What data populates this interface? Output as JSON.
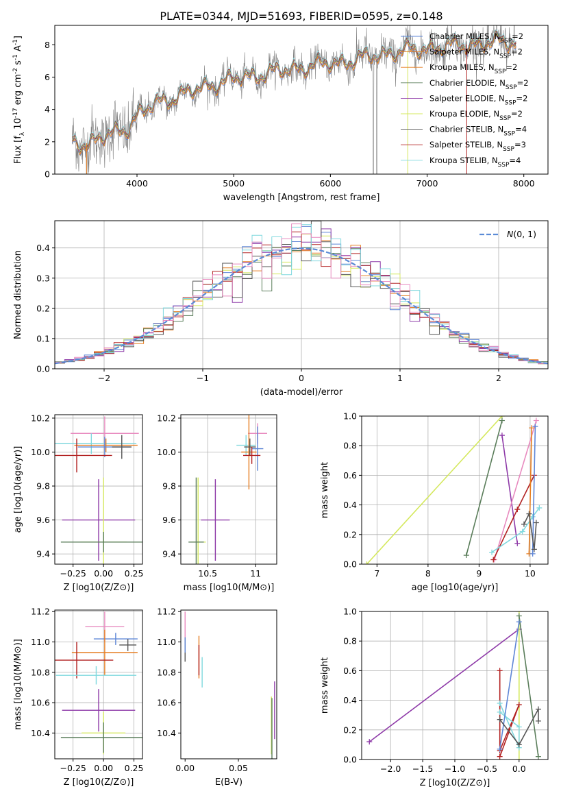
{
  "title": "PLATE=0344, MJD=51693, FIBERID=0595, z=0.148",
  "colors": {
    "chabrier_miles": "#5e86d6",
    "salpeter_miles": "#e67e22",
    "kroupa_miles": "#e67e22",
    "chabrier_elodie": "#5a7d5a",
    "salpeter_elodie": "#8e3aa8",
    "kroupa_elodie": "#d4e85c",
    "chabrier_stelib": "#555555",
    "salpeter_stelib": "#b22222",
    "kroupa_stelib": "#7fd8de",
    "pink": "#e88abf",
    "gaussian": "#5b8bd6",
    "spectrum": "#808080"
  },
  "chart_data": [
    {
      "id": "spectrum",
      "type": "line",
      "xlabel": "wavelength [Angstrom, rest frame]",
      "ylabel": "Flux [f_λ 10^-17 erg cm^-2 s^-1 A^-1]",
      "xlim": [
        3150,
        8250
      ],
      "ylim": [
        0,
        9.2
      ],
      "xticks": [
        4000,
        5000,
        6000,
        7000,
        8000
      ],
      "yticks": [
        0,
        2,
        4,
        6,
        8
      ],
      "grid": false,
      "legend_position": "top-right",
      "legend": [
        {
          "label": "Chabrier MILES, N_SSP=2",
          "color_key": "chabrier_miles"
        },
        {
          "label": "Salpeter MILES, N_SSP=2",
          "color_key": "salpeter_miles"
        },
        {
          "label": "Kroupa MILES, N_SSP=2",
          "color_key": "kroupa_miles"
        },
        {
          "label": "Chabrier ELODIE, N_SSP=2",
          "color_key": "chabrier_elodie"
        },
        {
          "label": "Salpeter ELODIE, N_SSP=2",
          "color_key": "salpeter_elodie"
        },
        {
          "label": "Kroupa ELODIE, N_SSP=2",
          "color_key": "kroupa_elodie"
        },
        {
          "label": "Chabrier STELIB, N_SSP=4",
          "color_key": "chabrier_stelib"
        },
        {
          "label": "Salpeter STELIB, N_SSP=3",
          "color_key": "salpeter_stelib"
        },
        {
          "label": "Kroupa STELIB, N_SSP=4",
          "color_key": "kroupa_stelib"
        }
      ],
      "continuum": {
        "x": [
          3330,
          3500,
          3700,
          3900,
          4000,
          4200,
          4500,
          4800,
          5100,
          5400,
          5800,
          6200,
          6600,
          7000,
          7400,
          7600,
          7800,
          7900
        ],
        "y": [
          2.0,
          1.9,
          2.4,
          2.9,
          3.6,
          4.4,
          5.0,
          5.6,
          6.0,
          6.3,
          6.7,
          7.0,
          7.5,
          7.8,
          8.0,
          8.1,
          8.2,
          8.2
        ]
      }
    },
    {
      "id": "residuals",
      "type": "histogram",
      "xlabel": "(data-model)/error",
      "ylabel": "Normed distribution",
      "xlim": [
        -2.5,
        2.5
      ],
      "ylim": [
        0,
        0.49
      ],
      "xticks": [
        -2,
        -1,
        0,
        1,
        2
      ],
      "yticks": [
        0.0,
        0.1,
        0.2,
        0.3,
        0.4
      ],
      "grid": true,
      "legend_position": "top-right",
      "legend": [
        {
          "label": "N(0,1)",
          "color_key": "gaussian",
          "style": "dashed"
        }
      ],
      "bin_width": 0.1
    },
    {
      "id": "age_vs_z",
      "type": "errorbar",
      "xlabel": "Z [log10(Z/Z⊙)]",
      "ylabel": "age  [log10(age/yr)]",
      "xlim": [
        -0.4,
        0.32
      ],
      "ylim": [
        9.34,
        10.22
      ],
      "xticks": [
        -0.25,
        0.0,
        0.25
      ],
      "xtick_labels": [
        "−0.25",
        "0.00",
        "0.25"
      ],
      "yticks": [
        9.4,
        9.6,
        9.8,
        10.0,
        10.2
      ],
      "grid": true,
      "points": [
        {
          "x": 0.01,
          "y": 10.11,
          "xerr": 0.28,
          "yerr": 0.1,
          "color_key": "pink"
        },
        {
          "x": -0.1,
          "y": 10.05,
          "xerr": 0.37,
          "yerr": 0.06,
          "color_key": "kroupa_stelib"
        },
        {
          "x": 0.02,
          "y": 10.04,
          "xerr": 0.26,
          "yerr": 0.04,
          "color_key": "salpeter_miles"
        },
        {
          "x": 0.01,
          "y": 10.03,
          "xerr": 0.22,
          "yerr": 0.06,
          "color_key": "chabrier_miles"
        },
        {
          "x": 0.15,
          "y": 10.03,
          "xerr": 0.08,
          "yerr": 0.07,
          "color_key": "chabrier_stelib"
        },
        {
          "x": -0.22,
          "y": 9.98,
          "xerr": 0.29,
          "yerr": 0.1,
          "color_key": "salpeter_stelib"
        },
        {
          "x": -0.04,
          "y": 9.6,
          "xerr": 0.3,
          "yerr": 0.24,
          "color_key": "salpeter_elodie"
        },
        {
          "x": 0.0,
          "y": 9.47,
          "xerr": 0.19,
          "yerr": 0.38,
          "color_key": "kroupa_elodie"
        },
        {
          "x": 0.0,
          "y": 9.47,
          "xerr": 0.35,
          "yerr": 0.06,
          "color_key": "chabrier_elodie"
        }
      ]
    },
    {
      "id": "age_vs_mass",
      "type": "errorbar",
      "xlabel": "mass [log10(M/M⊙)]",
      "ylabel": "",
      "xlim": [
        10.22,
        11.22
      ],
      "ylim": [
        9.34,
        10.22
      ],
      "xticks": [
        10.5,
        11.0
      ],
      "yticks": [
        9.4,
        9.6,
        9.8,
        10.0,
        10.2
      ],
      "grid": true,
      "points": [
        {
          "x": 11.02,
          "y": 10.11,
          "xerr": 0.1,
          "yerr": 0.06,
          "color_key": "pink"
        },
        {
          "x": 10.9,
          "y": 10.04,
          "xerr": 0.1,
          "yerr": 0.06,
          "color_key": "kroupa_stelib"
        },
        {
          "x": 10.93,
          "y": 10.0,
          "xerr": 0.08,
          "yerr": 0.22,
          "color_key": "salpeter_miles"
        },
        {
          "x": 11.02,
          "y": 10.02,
          "xerr": 0.06,
          "yerr": 0.13,
          "color_key": "chabrier_miles"
        },
        {
          "x": 10.94,
          "y": 10.03,
          "xerr": 0.06,
          "yerr": 0.05,
          "color_key": "chabrier_stelib"
        },
        {
          "x": 10.96,
          "y": 9.98,
          "xerr": 0.09,
          "yerr": 0.05,
          "color_key": "salpeter_stelib"
        },
        {
          "x": 10.58,
          "y": 9.6,
          "xerr": 0.15,
          "yerr": 0.24,
          "color_key": "salpeter_elodie"
        },
        {
          "x": 10.4,
          "y": 9.47,
          "xerr": 0.08,
          "yerr": 0.38,
          "color_key": "kroupa_elodie"
        },
        {
          "x": 10.38,
          "y": 9.47,
          "xerr": 0.08,
          "yerr": 0.38,
          "color_key": "chabrier_elodie"
        }
      ]
    },
    {
      "id": "mass_weight_vs_age",
      "type": "line",
      "xlabel": "age  [log10(age/yr)]",
      "ylabel": "mass weight",
      "xlim": [
        6.7,
        10.35
      ],
      "ylim": [
        0,
        1.0
      ],
      "xticks": [
        7,
        8,
        9,
        10
      ],
      "yticks": [
        0.0,
        0.2,
        0.4,
        0.6,
        0.8,
        1.0
      ],
      "grid": true,
      "series": [
        {
          "color_key": "kroupa_elodie",
          "x": [
            6.8,
            9.45
          ],
          "y": [
            0.0,
            1.0
          ]
        },
        {
          "color_key": "chabrier_elodie",
          "x": [
            8.75,
            9.45
          ],
          "y": [
            0.06,
            0.97
          ]
        },
        {
          "color_key": "salpeter_elodie",
          "x": [
            9.45,
            9.75
          ],
          "y": [
            0.87,
            0.14
          ]
        },
        {
          "color_key": "pink",
          "x": [
            9.3,
            10.12
          ],
          "y": [
            0.03,
            0.97
          ]
        },
        {
          "color_key": "salpeter_stelib",
          "x": [
            9.28,
            9.75,
            10.08
          ],
          "y": [
            0.03,
            0.37,
            0.6
          ]
        },
        {
          "color_key": "kroupa_stelib",
          "x": [
            9.25,
            9.85,
            10.05,
            10.18
          ],
          "y": [
            0.08,
            0.22,
            0.32,
            0.38
          ]
        },
        {
          "color_key": "salpeter_miles",
          "x": [
            9.98,
            10.03
          ],
          "y": [
            0.07,
            0.92
          ]
        },
        {
          "color_key": "chabrier_miles",
          "x": [
            10.05,
            10.1
          ],
          "y": [
            0.07,
            0.93
          ]
        },
        {
          "color_key": "chabrier_stelib",
          "x": [
            9.88,
            9.98,
            10.08,
            10.12
          ],
          "y": [
            0.27,
            0.34,
            0.1,
            0.28
          ]
        }
      ]
    },
    {
      "id": "mass_vs_z",
      "type": "errorbar",
      "xlabel": "Z [log10(Z/Z⊙)]",
      "ylabel": "mass [log10(M/M⊙)]",
      "xlim": [
        -0.4,
        0.32
      ],
      "ylim": [
        10.23,
        11.21
      ],
      "xticks": [
        -0.25,
        0.0,
        0.25
      ],
      "xtick_labels": [
        "−0.25",
        "0.00",
        "0.25"
      ],
      "yticks": [
        10.4,
        10.6,
        10.8,
        11.0,
        11.2
      ],
      "grid": true,
      "points": [
        {
          "x": 0.01,
          "y": 11.1,
          "xerr": 0.16,
          "yerr": 0.1,
          "color_key": "pink"
        },
        {
          "x": 0.1,
          "y": 11.02,
          "xerr": 0.18,
          "yerr": 0.04,
          "color_key": "chabrier_miles"
        },
        {
          "x": 0.2,
          "y": 10.98,
          "xerr": 0.07,
          "yerr": 0.04,
          "color_key": "chabrier_stelib"
        },
        {
          "x": 0.01,
          "y": 10.93,
          "xerr": 0.27,
          "yerr": 0.15,
          "color_key": "salpeter_miles"
        },
        {
          "x": -0.22,
          "y": 10.88,
          "xerr": 0.3,
          "yerr": 0.12,
          "color_key": "salpeter_stelib"
        },
        {
          "x": -0.06,
          "y": 10.78,
          "xerr": 0.33,
          "yerr": 0.06,
          "color_key": "kroupa_stelib"
        },
        {
          "x": -0.04,
          "y": 10.55,
          "xerr": 0.3,
          "yerr": 0.14,
          "color_key": "salpeter_elodie"
        },
        {
          "x": 0.0,
          "y": 10.4,
          "xerr": 0.18,
          "yerr": 0.14,
          "color_key": "kroupa_elodie"
        },
        {
          "x": 0.0,
          "y": 10.37,
          "xerr": 0.35,
          "yerr": 0.1,
          "color_key": "chabrier_elodie"
        }
      ]
    },
    {
      "id": "mass_vs_ebv",
      "type": "errorbar",
      "xlabel": "E(B-V)",
      "ylabel": "",
      "xlim": [
        -0.004,
        0.086
      ],
      "ylim": [
        10.23,
        11.21
      ],
      "xticks": [
        0.0,
        0.05
      ],
      "xtick_labels": [
        "0.00",
        "0.05"
      ],
      "yticks": [
        10.4,
        10.6,
        10.8,
        11.0,
        11.2
      ],
      "grid": false,
      "points": [
        {
          "x": 0.0,
          "y": 11.1,
          "xerr": 0.0,
          "yerr": 0.1,
          "color_key": "pink"
        },
        {
          "x": 0.0,
          "y": 10.95,
          "xerr": 0.0,
          "yerr": 0.08,
          "color_key": "chabrier_stelib"
        },
        {
          "x": 0.0,
          "y": 10.98,
          "xerr": 0.0,
          "yerr": 0.05,
          "color_key": "chabrier_miles"
        },
        {
          "x": 0.013,
          "y": 10.9,
          "xerr": 0.0,
          "yerr": 0.14,
          "color_key": "salpeter_miles"
        },
        {
          "x": 0.013,
          "y": 10.88,
          "xerr": 0.0,
          "yerr": 0.1,
          "color_key": "salpeter_stelib"
        },
        {
          "x": 0.016,
          "y": 10.8,
          "xerr": 0.0,
          "yerr": 0.1,
          "color_key": "kroupa_stelib"
        },
        {
          "x": 0.084,
          "y": 10.55,
          "xerr": 0.0,
          "yerr": 0.19,
          "color_key": "salpeter_elodie"
        },
        {
          "x": 0.081,
          "y": 10.45,
          "xerr": 0.0,
          "yerr": 0.19,
          "color_key": "kroupa_elodie"
        },
        {
          "x": 0.0815,
          "y": 10.43,
          "xerr": 0.0,
          "yerr": 0.2,
          "color_key": "chabrier_elodie"
        }
      ]
    },
    {
      "id": "mass_weight_vs_z",
      "type": "line",
      "xlabel": "Z [log10(Z/Z⊙)]",
      "ylabel": "mass weight",
      "xlim": [
        -2.45,
        0.45
      ],
      "ylim": [
        0,
        1.0
      ],
      "xticks": [
        -2.0,
        -1.5,
        -1.0,
        -0.5,
        0.0
      ],
      "xtick_labels": [
        "−2.0",
        "−1.5",
        "−1.0",
        "−0.5",
        "0.0"
      ],
      "yticks": [
        0.0,
        0.2,
        0.4,
        0.6,
        0.8,
        1.0
      ],
      "grid": true,
      "series": [
        {
          "color_key": "salpeter_elodie",
          "x": [
            -2.33,
            0.0
          ],
          "y": [
            0.12,
            0.88
          ]
        },
        {
          "color_key": "kroupa_elodie",
          "x": [
            0.0,
            0.0
          ],
          "y": [
            0.0,
            1.0
          ]
        },
        {
          "color_key": "chabrier_elodie",
          "x": [
            0.0,
            0.3
          ],
          "y": [
            0.97,
            0.02
          ]
        },
        {
          "color_key": "salpeter_stelib",
          "x": [
            -0.3,
            -0.3,
            0.0,
            -0.3
          ],
          "y": [
            0.6,
            0.06,
            0.37,
            0.02
          ]
        },
        {
          "color_key": "kroupa_stelib",
          "x": [
            -0.3,
            0.0,
            0.0,
            -0.3
          ],
          "y": [
            0.38,
            0.08,
            0.22,
            0.32
          ]
        },
        {
          "color_key": "chabrier_miles",
          "x": [
            -0.3,
            0.0
          ],
          "y": [
            0.07,
            0.93
          ]
        },
        {
          "color_key": "chabrier_stelib",
          "x": [
            -0.3,
            0.0,
            0.3,
            0.3
          ],
          "y": [
            0.27,
            0.1,
            0.34,
            0.26
          ]
        }
      ]
    }
  ]
}
